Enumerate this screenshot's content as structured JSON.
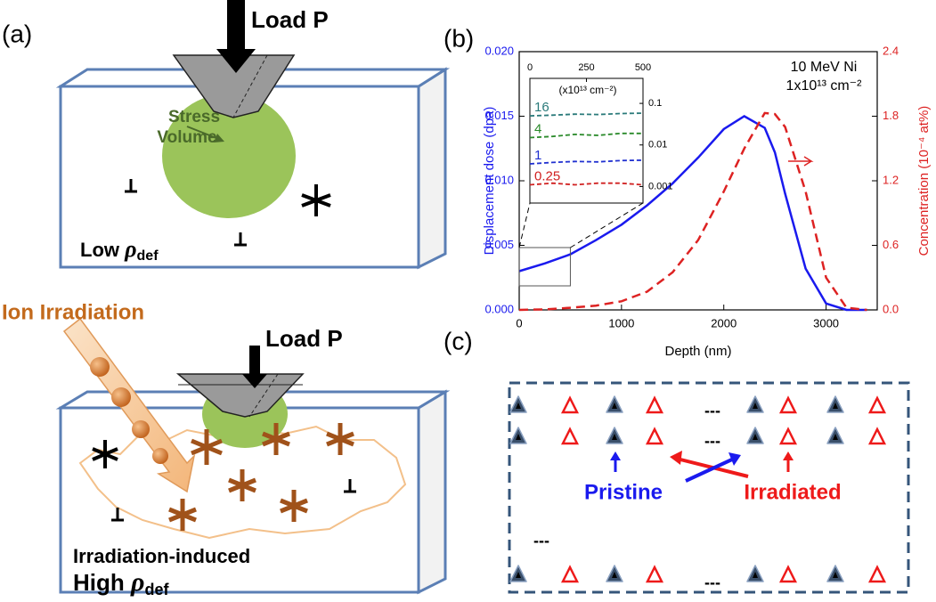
{
  "panel_a": {
    "label": "(a)",
    "top": {
      "load": "Load P",
      "stress": [
        "Stress",
        "Volume"
      ],
      "density": {
        "prefix": "Low ",
        "symbol": "ρ",
        "subscript": "def"
      }
    },
    "bottom": {
      "irradiation": "Ion Irradiation",
      "load": "Load P",
      "induced": "Irradiation-induced",
      "density": {
        "prefix": "High ",
        "symbol": "ρ",
        "subscript": "def"
      }
    }
  },
  "panel_b_label": "(b)",
  "chart_data": {
    "type": "line",
    "x_label": "Depth (nm)",
    "y_label": "Displacement dose (dpa)",
    "y2_label": "Concentration (10⁻⁴ at%)",
    "annotation": [
      "10 MeV Ni",
      "1x10¹³ cm⁻²"
    ],
    "x": [
      0,
      250,
      500,
      750,
      1000,
      1250,
      1500,
      1750,
      2000,
      2200,
      2400,
      2500,
      2600,
      2800,
      3000,
      3200,
      3400
    ],
    "xlim": [
      0,
      3500
    ],
    "xticks": [
      0,
      1000,
      2000,
      3000
    ],
    "ylim": [
      0,
      0.02
    ],
    "yticks": [
      {
        "value": 0,
        "label": "0.000"
      },
      {
        "value": 0.005,
        "label": "0.005"
      },
      {
        "value": 0.01,
        "label": "0.010"
      },
      {
        "value": 0.015,
        "label": "0.015"
      },
      {
        "value": 0.02,
        "label": "0.020"
      }
    ],
    "y2lim": [
      0,
      2.4
    ],
    "y2ticks": [
      {
        "value": 0,
        "label": "0.0"
      },
      0.6,
      1.2,
      1.8,
      2.4
    ],
    "series": [
      {
        "color": "#1a1aee",
        "dash": false,
        "values": [
          0.003,
          0.0036,
          0.0043,
          0.0054,
          0.0066,
          0.0081,
          0.0098,
          0.0118,
          0.014,
          0.015,
          0.0141,
          0.0122,
          0.009,
          0.0032,
          0.0005,
          0,
          0
        ]
      },
      {
        "color": "#dd2222",
        "dash": true,
        "axis": "y2",
        "values": [
          0,
          0.005,
          0.02,
          0.04,
          0.08,
          0.17,
          0.35,
          0.65,
          1.1,
          1.5,
          1.83,
          1.82,
          1.7,
          1.1,
          0.3,
          0.02,
          0
        ]
      }
    ],
    "inset": {
      "type": "line",
      "unit_label": "(x10¹³ cm⁻²)",
      "x": [
        0,
        100,
        200,
        300,
        400,
        500
      ],
      "xlim": [
        0,
        500
      ],
      "xticks": [
        0,
        250,
        500
      ],
      "ylim": [
        0.0004,
        0.4
      ],
      "yticks": [
        0.001,
        0.01,
        0.1
      ],
      "log_y": true,
      "series": [
        {
          "name": "0.25",
          "color": "#d02020",
          "values": [
            0.0011,
            0.0012,
            0.0011,
            0.0012,
            0.0012,
            0.0011
          ]
        },
        {
          "name": "1",
          "color": "#2030d0",
          "values": [
            0.0035,
            0.0038,
            0.004,
            0.0039,
            0.0042,
            0.0043
          ]
        },
        {
          "name": "4",
          "color": "#2a8a2a",
          "values": [
            0.015,
            0.016,
            0.018,
            0.017,
            0.019,
            0.019
          ]
        },
        {
          "name": "16",
          "color": "#2a7a7a",
          "values": [
            0.05,
            0.052,
            0.055,
            0.054,
            0.057,
            0.058
          ]
        }
      ]
    }
  },
  "panel_c": {
    "label": "(c)",
    "pristine": "Pristine",
    "irradiated": "Irradiated",
    "ellipses": [
      "---",
      "---",
      "---",
      "---"
    ]
  }
}
